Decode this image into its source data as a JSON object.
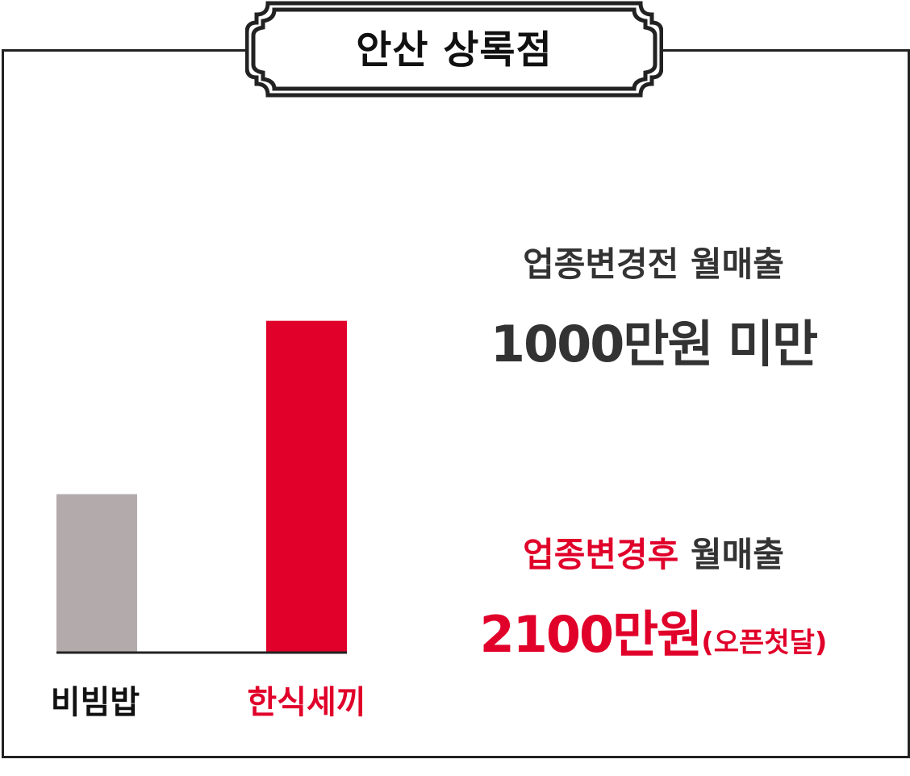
{
  "title": "안산 상록점",
  "colors": {
    "before": "#b2aaab",
    "after": "#e0002a",
    "dark": "#333333",
    "frame": "#222222"
  },
  "chart_data": {
    "type": "bar",
    "categories": [
      "비빔밥",
      "한식세끼"
    ],
    "values": [
      1000,
      2100
    ],
    "unit": "만원",
    "ylim": [
      0,
      2600
    ],
    "title": "안산 상록점",
    "xlabel": "",
    "ylabel": "",
    "grid": false,
    "legend": "none"
  },
  "before": {
    "label_emph": "업종변경전",
    "label_rest": " 월매출",
    "value": "1000만원 미만"
  },
  "after": {
    "label_emph": "업종변경후",
    "label_rest": " 월매출",
    "value": "2100만원",
    "note": "(오픈첫달)"
  }
}
